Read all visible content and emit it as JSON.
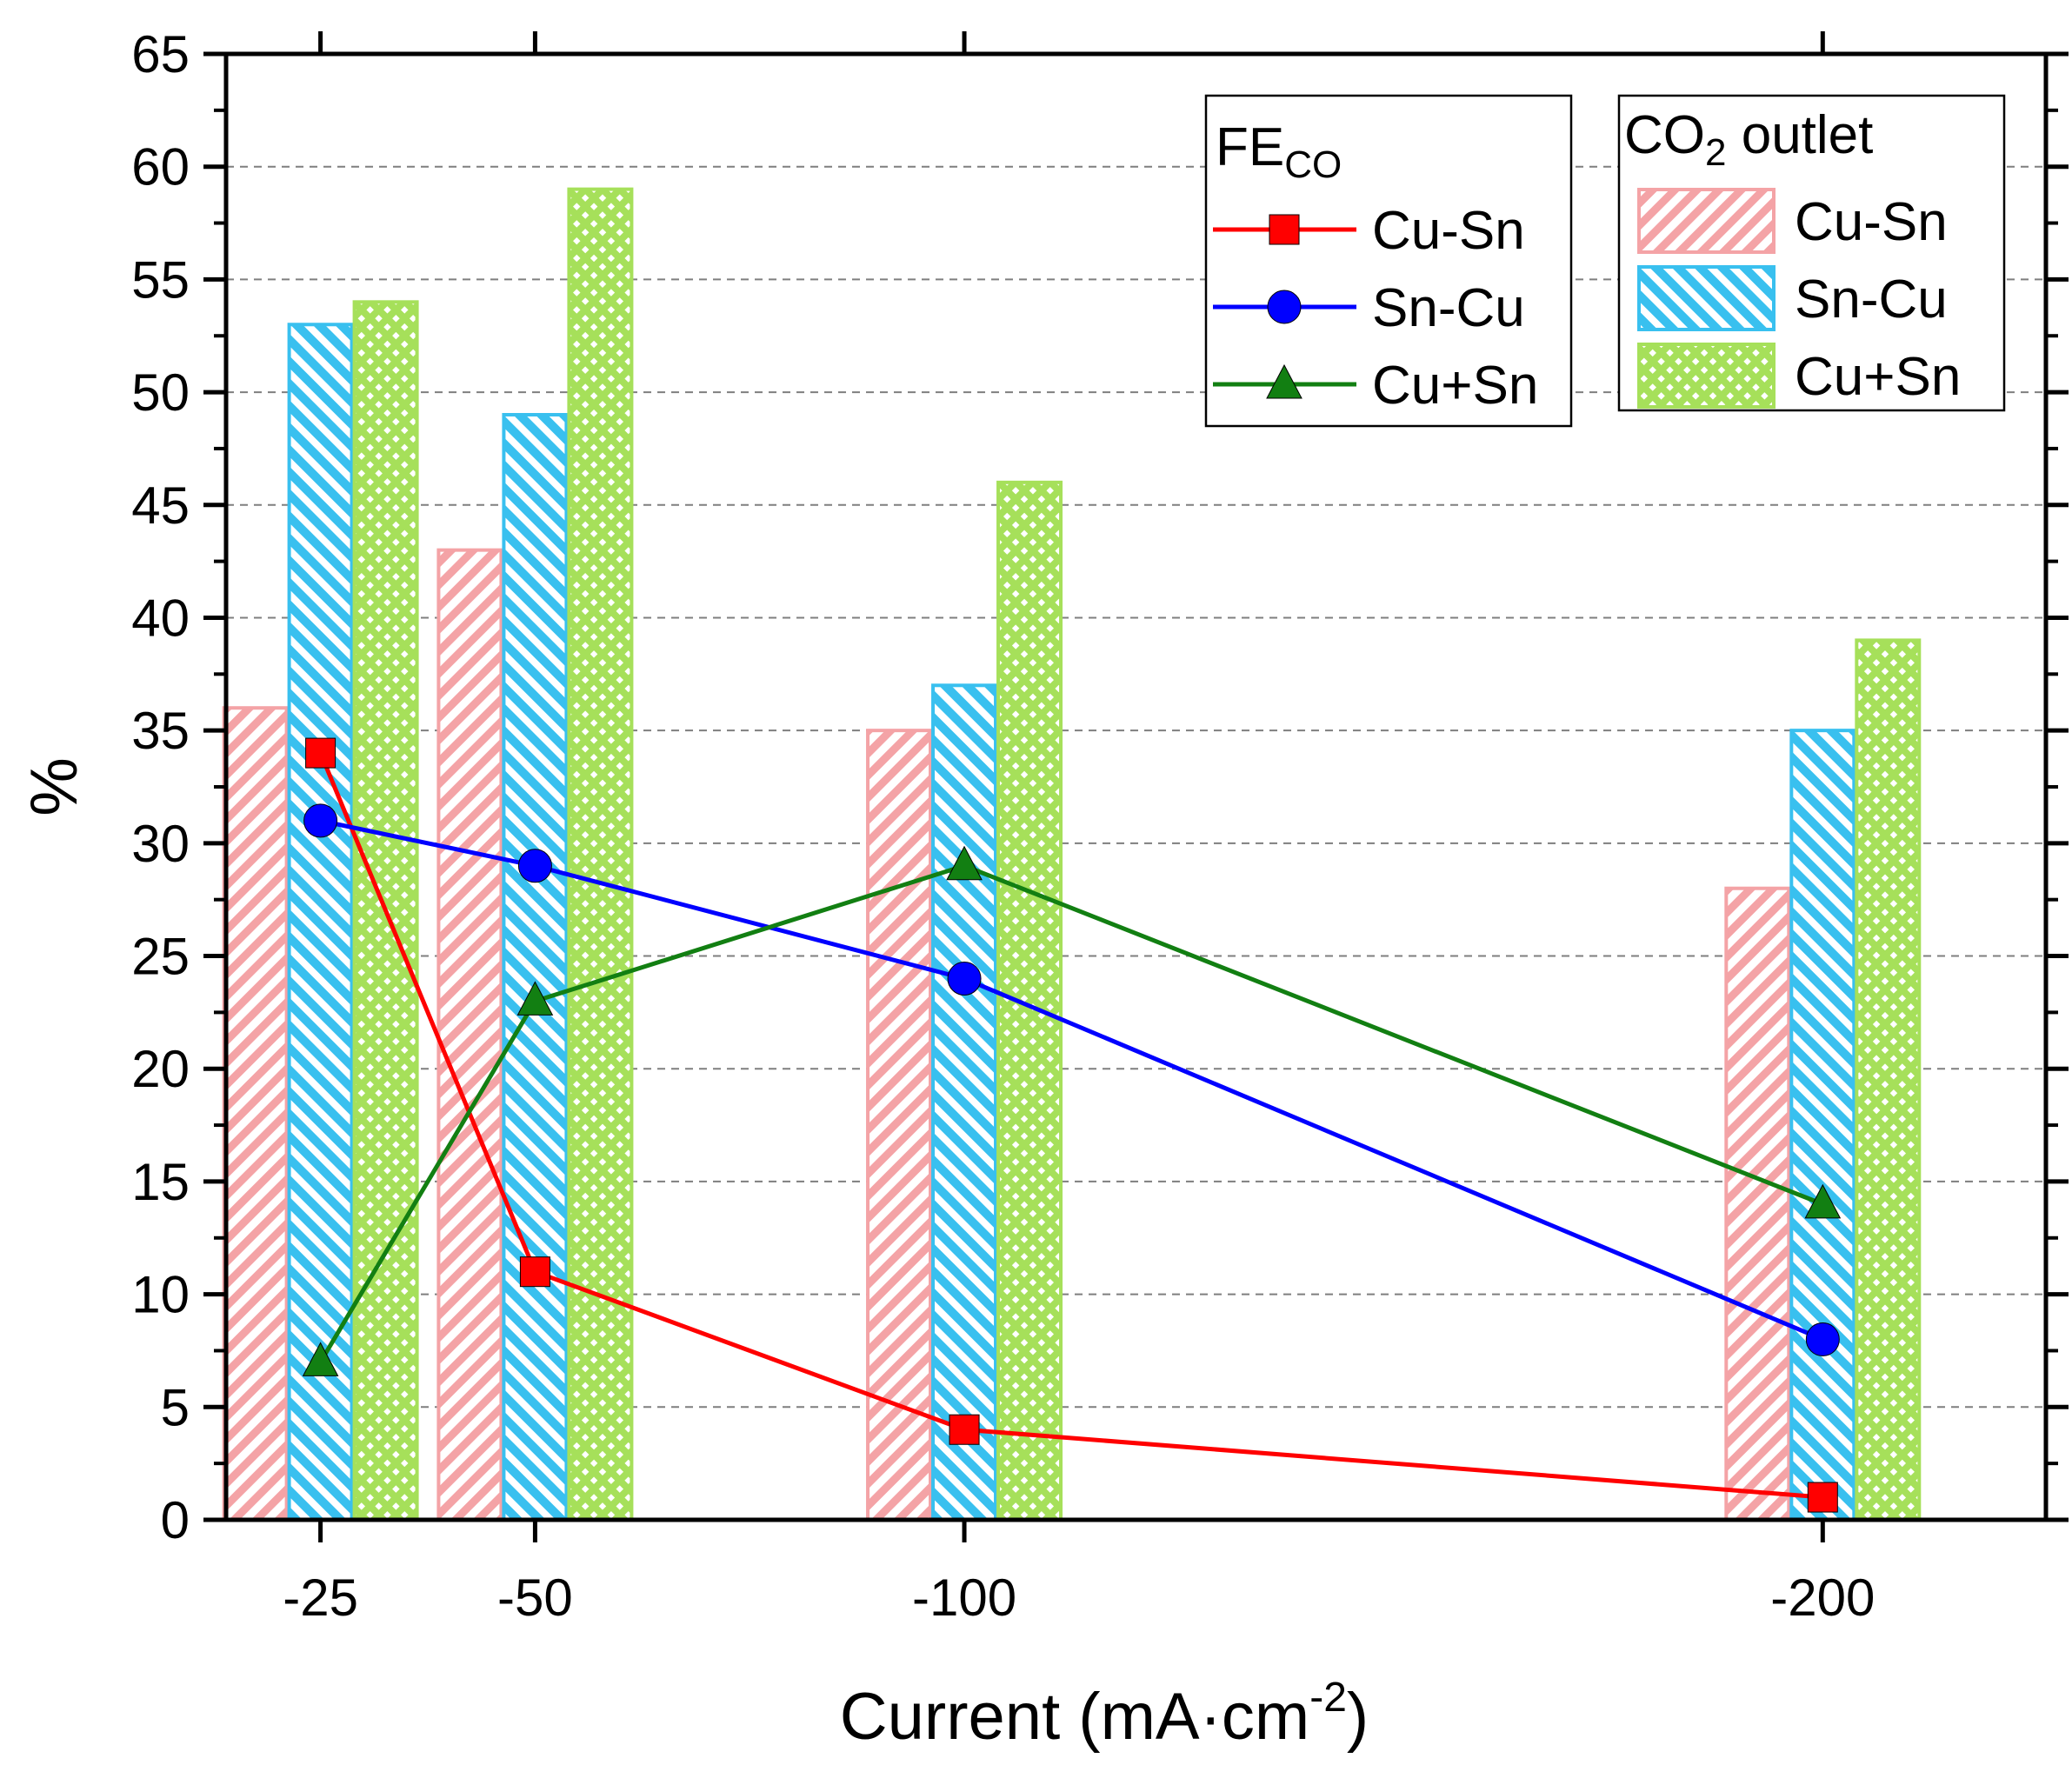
{
  "chart_data": {
    "type": "bar+line",
    "xlabel": "Current (mA·cm",
    "xlabel_sup": "-2",
    "xlabel_close": ")",
    "ylabel": "%",
    "ylim": [
      0,
      65
    ],
    "yticks": [
      0,
      5,
      10,
      15,
      20,
      25,
      30,
      35,
      40,
      45,
      50,
      55,
      60,
      65
    ],
    "xlim": [
      -14,
      -226
    ],
    "categories": [
      "-25",
      "-50",
      "-100",
      "-200"
    ],
    "x": [
      -25,
      -50,
      -100,
      -200
    ],
    "grid": "horizontal dashed",
    "bar_series": [
      {
        "name": "Cu-Sn",
        "values": [
          36,
          43,
          35,
          28
        ],
        "color": "#f4a3a6",
        "pattern": "diagonal"
      },
      {
        "name": "Sn-Cu",
        "values": [
          53,
          49,
          37,
          35
        ],
        "color": "#39c0ef",
        "pattern": "diagonal"
      },
      {
        "name": "Cu+Sn",
        "values": [
          54,
          59,
          46,
          39
        ],
        "color": "#a6e05a",
        "pattern": "crosshatch"
      }
    ],
    "line_series": [
      {
        "name": "Cu-Sn",
        "values": [
          34,
          11,
          4,
          1
        ],
        "color": "#ff0000",
        "marker": "square"
      },
      {
        "name": "Sn-Cu",
        "values": [
          31,
          29,
          24,
          8
        ],
        "color": "#0000ff",
        "marker": "circle"
      },
      {
        "name": "Cu+Sn",
        "values": [
          7,
          23,
          29,
          14
        ],
        "color": "#127f12",
        "marker": "triangle"
      }
    ],
    "legend_lines": {
      "title": "FE",
      "title_sub": "CO",
      "placement": "top-right"
    },
    "legend_bars": {
      "title_pre": "CO",
      "title_sub": "2",
      "title_post": " outlet",
      "placement": "top-right"
    }
  }
}
